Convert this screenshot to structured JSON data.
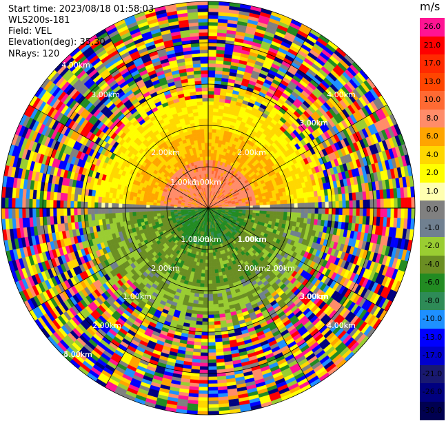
{
  "info": {
    "start_time": "Start time: 2023/08/18 01:58:03",
    "instrument": "WLS200s-181",
    "field": "Field: VEL",
    "elevation": "Elevation(deg): 35.30",
    "nrays": "NRays: 120"
  },
  "colorbar": {
    "unit": "m/s",
    "labels": [
      "26.0",
      "21.0",
      "17.0",
      "13.0",
      "10.0",
      "8.0",
      "6.0",
      "4.0",
      "2.0",
      "1.0",
      "0.0",
      "-1.0",
      "-2.0",
      "-4.0",
      "-6.0",
      "-8.0",
      "-10.0",
      "-13.0",
      "-17.0",
      "-21.0",
      "-26.0",
      "-30.0"
    ],
    "colors": [
      "#ff1493",
      "#ff0000",
      "#ff2a00",
      "#ff4500",
      "#ff6a33",
      "#ff8c69",
      "#ffa500",
      "#ffd700",
      "#ffff00",
      "#ffffb0",
      "#808080",
      "#708090",
      "#9acd32",
      "#6b8e23",
      "#228b22",
      "#2e8b57",
      "#1e90ff",
      "#0000ff",
      "#0000cd",
      "#191970",
      "#000080",
      "#000050"
    ]
  },
  "chart_data": {
    "type": "heatmap",
    "projection": "polar PPI",
    "field": "VEL",
    "units": "m/s",
    "nrays": 120,
    "range_ring_labels": [
      "1.00km",
      "2.00km",
      "1.00km",
      "2.00km",
      "1.00km",
      "2.00km",
      "1.00km",
      "2.00km",
      "3.00km",
      "4.00km",
      "4.00km",
      "3.00km",
      "3.00km",
      "4.00km",
      "4.00km",
      "3.00km",
      "1.00km",
      "1.00km",
      "2.00km",
      "1.00km",
      "2.00km",
      "3.00km",
      "4.00km",
      "5.00km"
    ],
    "pattern": {
      "northern_half_near_range_velocity": [
        2.0,
        10.0
      ],
      "southern_half_near_range_velocity": [
        -8.0,
        -1.0
      ],
      "axis_band_velocity": 0.0,
      "outer_ring_note": "noisy mixed values beyond ~3 km"
    }
  }
}
